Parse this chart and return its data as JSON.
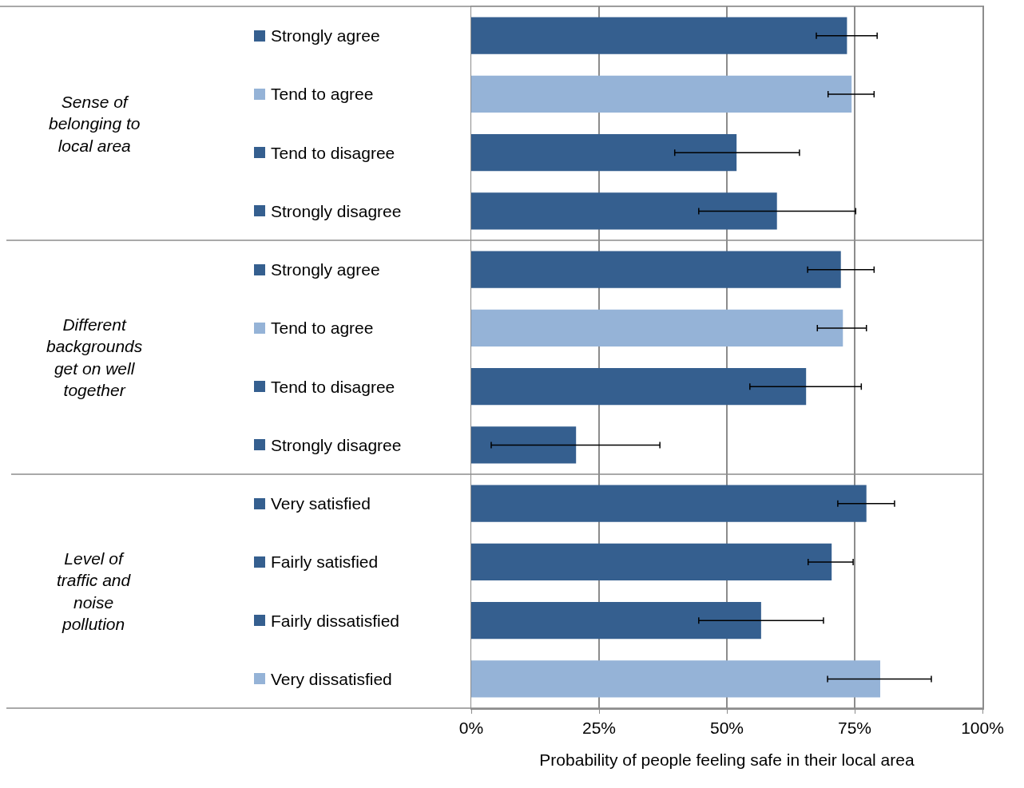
{
  "chart_data": {
    "type": "bar",
    "orientation": "horizontal",
    "categories": [
      "Strongly agree",
      "Tend to agree",
      "Tend to disagree",
      "Strongly disagree",
      "Strongly agree",
      "Tend to agree",
      "Tend to disagree",
      "Strongly disagree",
      "Very satisfied",
      "Fairly satisfied",
      "Fairly dissatisfied",
      "Very dissatisfied"
    ],
    "values": [
      73.5,
      74.4,
      51.9,
      59.8,
      72.3,
      72.7,
      65.5,
      20.5,
      77.3,
      70.5,
      56.7,
      80
    ],
    "colors": [
      "#355f8f",
      "#95b3d7",
      "#355f8f",
      "#355f8f",
      "#355f8f",
      "#95b3d7",
      "#355f8f",
      "#355f8f",
      "#355f8f",
      "#355f8f",
      "#355f8f",
      "#95b3d7"
    ],
    "errors": [
      [
        67.5,
        79.4
      ],
      [
        69.8,
        78.8
      ],
      [
        39.8,
        64.2
      ],
      [
        44.5,
        75.2
      ],
      [
        65.8,
        78.8
      ],
      [
        67.7,
        77.3
      ],
      [
        54.5,
        76.3
      ],
      [
        3.9,
        36.9
      ],
      [
        71.7,
        82.8
      ],
      [
        65.9,
        74.7
      ],
      [
        44.5,
        68.9
      ],
      [
        69.7,
        90
      ]
    ],
    "xlim": [
      0,
      100
    ],
    "xticks": [
      {
        "value": 0,
        "label": "0%"
      },
      {
        "value": 25,
        "label": "25%"
      },
      {
        "value": 50,
        "label": "50%"
      },
      {
        "value": 75,
        "label": "75%"
      },
      {
        "value": 100,
        "label": "100%"
      }
    ],
    "xlabel": "Probability of people feeling safe in their local area",
    "annotations": [
      "Sense of belonging to local area",
      "Different backgrounds get on well together",
      "Level of traffic and noise pollution"
    ],
    "grid": "x"
  }
}
